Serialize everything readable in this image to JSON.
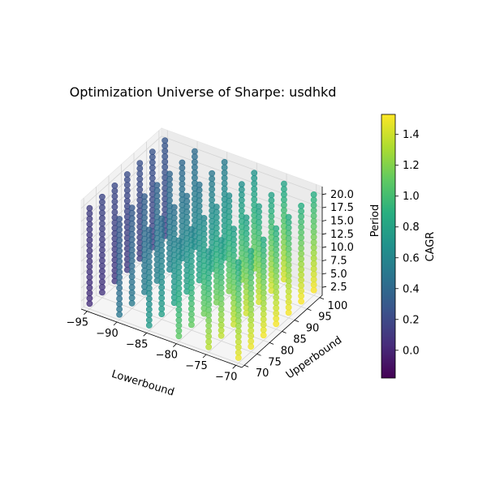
{
  "chart_data": {
    "type": "scatter",
    "projection": "3d",
    "title": "Optimization Universe of Sharpe: usdhkd",
    "xlabel": "Lowerbound",
    "ylabel": "Upperbound",
    "zlabel": "Period",
    "colorbar_label": "CAGR",
    "colormap": "viridis",
    "xlim": [
      -96,
      -69
    ],
    "ylim": [
      69,
      101
    ],
    "zlim": [
      1,
      21.5
    ],
    "clim": [
      -0.18,
      1.53
    ],
    "xticks": [
      -95,
      -90,
      -85,
      -80,
      -75,
      -70
    ],
    "yticks": [
      70,
      75,
      80,
      85,
      90,
      95,
      100
    ],
    "zticks": [
      2.5,
      5.0,
      7.5,
      10.0,
      12.5,
      15.0,
      17.5,
      20.0
    ],
    "xtick_labels": [
      "−95",
      "−90",
      "−85",
      "−80",
      "−75",
      "−70"
    ],
    "ytick_labels": [
      "70",
      "75",
      "80",
      "85",
      "90",
      "95",
      "100"
    ],
    "ztick_labels": [
      "2.5",
      "5.0",
      "7.5",
      "10.0",
      "12.5",
      "15.0",
      "17.5",
      "20.0"
    ],
    "colorbar_ticks": [
      0.0,
      0.2,
      0.4,
      0.6,
      0.8,
      1.0,
      1.2,
      1.4
    ],
    "colorbar_tick_labels": [
      "0.0",
      "0.2",
      "0.4",
      "0.6",
      "0.8",
      "1.0",
      "1.2",
      "1.4"
    ],
    "lowerbound_values": [
      -95,
      -90,
      -85,
      -80,
      -75,
      -70
    ],
    "upperbound_values": [
      70,
      75,
      80,
      85,
      90,
      95,
      100
    ],
    "period_values": [
      2,
      3,
      4,
      5,
      6,
      7,
      8,
      9,
      10,
      11,
      12,
      13,
      14,
      15,
      16,
      17,
      18,
      19,
      20
    ],
    "cagr_model": {
      "description": "approximate CAGR per point: base + period_slope * (period - 2)",
      "points": [
        {
          "lowerbound": -95,
          "upperbound": 70,
          "base": 0.05,
          "period_slope": 0.005
        },
        {
          "lowerbound": -95,
          "upperbound": 75,
          "base": 0.08,
          "period_slope": 0.006
        },
        {
          "lowerbound": -95,
          "upperbound": 80,
          "base": 0.1,
          "period_slope": 0.006
        },
        {
          "lowerbound": -95,
          "upperbound": 85,
          "base": 0.12,
          "period_slope": 0.006
        },
        {
          "lowerbound": -95,
          "upperbound": 90,
          "base": 0.14,
          "period_slope": 0.006
        },
        {
          "lowerbound": -95,
          "upperbound": 95,
          "base": 0.16,
          "period_slope": 0.006
        },
        {
          "lowerbound": -95,
          "upperbound": 100,
          "base": 0.18,
          "period_slope": 0.006
        },
        {
          "lowerbound": -90,
          "upperbound": 70,
          "base": 0.5,
          "period_slope": -0.013
        },
        {
          "lowerbound": -90,
          "upperbound": 75,
          "base": 0.52,
          "period_slope": -0.012
        },
        {
          "lowerbound": -90,
          "upperbound": 80,
          "base": 0.55,
          "period_slope": -0.012
        },
        {
          "lowerbound": -90,
          "upperbound": 85,
          "base": 0.58,
          "period_slope": -0.012
        },
        {
          "lowerbound": -90,
          "upperbound": 90,
          "base": 0.6,
          "period_slope": -0.012
        },
        {
          "lowerbound": -90,
          "upperbound": 95,
          "base": 0.62,
          "period_slope": -0.012
        },
        {
          "lowerbound": -90,
          "upperbound": 100,
          "base": 0.64,
          "period_slope": -0.012
        },
        {
          "lowerbound": -85,
          "upperbound": 70,
          "base": 0.75,
          "period_slope": -0.02
        },
        {
          "lowerbound": -85,
          "upperbound": 75,
          "base": 0.78,
          "period_slope": -0.02
        },
        {
          "lowerbound": -85,
          "upperbound": 80,
          "base": 0.8,
          "period_slope": -0.02
        },
        {
          "lowerbound": -85,
          "upperbound": 85,
          "base": 0.82,
          "period_slope": -0.02
        },
        {
          "lowerbound": -85,
          "upperbound": 90,
          "base": 0.84,
          "period_slope": -0.02
        },
        {
          "lowerbound": -85,
          "upperbound": 95,
          "base": 0.86,
          "period_slope": -0.02
        },
        {
          "lowerbound": -85,
          "upperbound": 100,
          "base": 0.88,
          "period_slope": -0.02
        },
        {
          "lowerbound": -80,
          "upperbound": 70,
          "base": 1.1,
          "period_slope": -0.03
        },
        {
          "lowerbound": -80,
          "upperbound": 75,
          "base": 1.12,
          "period_slope": -0.03
        },
        {
          "lowerbound": -80,
          "upperbound": 80,
          "base": 1.15,
          "period_slope": -0.03
        },
        {
          "lowerbound": -80,
          "upperbound": 85,
          "base": 1.17,
          "period_slope": -0.03
        },
        {
          "lowerbound": -80,
          "upperbound": 90,
          "base": 1.19,
          "period_slope": -0.03
        },
        {
          "lowerbound": -80,
          "upperbound": 95,
          "base": 1.21,
          "period_slope": -0.03
        },
        {
          "lowerbound": -80,
          "upperbound": 100,
          "base": 1.23,
          "period_slope": -0.03
        },
        {
          "lowerbound": -75,
          "upperbound": 70,
          "base": 1.35,
          "period_slope": -0.035
        },
        {
          "lowerbound": -75,
          "upperbound": 75,
          "base": 1.37,
          "period_slope": -0.035
        },
        {
          "lowerbound": -75,
          "upperbound": 80,
          "base": 1.39,
          "period_slope": -0.035
        },
        {
          "lowerbound": -75,
          "upperbound": 85,
          "base": 1.41,
          "period_slope": -0.035
        },
        {
          "lowerbound": -75,
          "upperbound": 90,
          "base": 1.42,
          "period_slope": -0.035
        },
        {
          "lowerbound": -75,
          "upperbound": 95,
          "base": 1.43,
          "period_slope": -0.035
        },
        {
          "lowerbound": -75,
          "upperbound": 100,
          "base": 1.44,
          "period_slope": -0.035
        },
        {
          "lowerbound": -70,
          "upperbound": 70,
          "base": 1.48,
          "period_slope": -0.035
        },
        {
          "lowerbound": -70,
          "upperbound": 75,
          "base": 1.49,
          "period_slope": -0.035
        },
        {
          "lowerbound": -70,
          "upperbound": 80,
          "base": 1.5,
          "period_slope": -0.035
        },
        {
          "lowerbound": -70,
          "upperbound": 85,
          "base": 1.51,
          "period_slope": -0.035
        },
        {
          "lowerbound": -70,
          "upperbound": 90,
          "base": 1.51,
          "period_slope": -0.035
        },
        {
          "lowerbound": -70,
          "upperbound": 95,
          "base": 1.52,
          "period_slope": -0.035
        },
        {
          "lowerbound": -70,
          "upperbound": 100,
          "base": 1.52,
          "period_slope": -0.035
        }
      ]
    },
    "grid": true,
    "colorbar_position": "right"
  }
}
